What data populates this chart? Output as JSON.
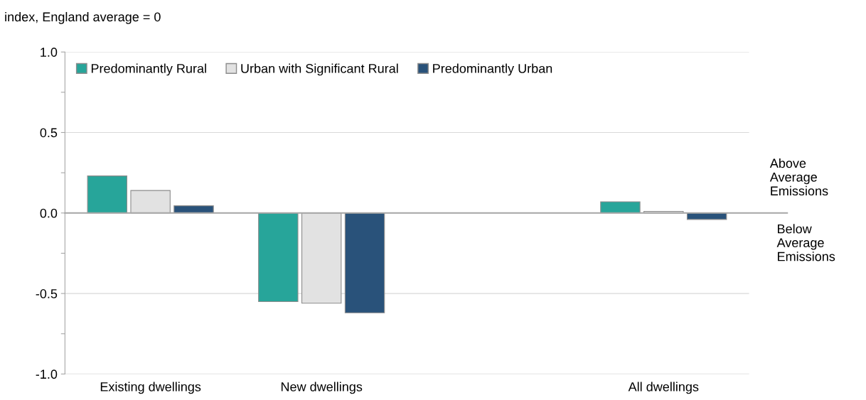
{
  "chart_data": {
    "type": "bar",
    "ylabel": "index, England average = 0",
    "categories": [
      "Existing dwellings",
      "New dwellings",
      null,
      "All dwellings"
    ],
    "series": [
      {
        "name": "Predominantly Rural",
        "color": "#27a59a",
        "values": [
          0.23,
          -0.55,
          null,
          0.07
        ]
      },
      {
        "name": "Urban with Significant Rural",
        "color": "#e2e2e2",
        "values": [
          0.14,
          -0.56,
          null,
          0.01
        ]
      },
      {
        "name": "Predominantly Urban",
        "color": "#29527a",
        "values": [
          0.045,
          -0.62,
          null,
          -0.04
        ]
      }
    ],
    "ylim": [
      -1.0,
      1.0
    ],
    "yticks": [
      {
        "value": -1.0,
        "label": "-1.0"
      },
      {
        "value": -0.75,
        "label": null
      },
      {
        "value": -0.5,
        "label": "-0.5"
      },
      {
        "value": -0.25,
        "label": null
      },
      {
        "value": 0.0,
        "label": "0.0"
      },
      {
        "value": 0.25,
        "label": null
      },
      {
        "value": 0.5,
        "label": "0.5"
      },
      {
        "value": 0.75,
        "label": null
      },
      {
        "value": 1.0,
        "label": "1.0"
      }
    ],
    "grid": "y",
    "legend": "top left",
    "annotations": [
      "Above\nAverage\nEmissions",
      "Below\nAverage\nEmissions"
    ],
    "ref_lines": [
      {
        "axis": "y",
        "value": 0.0,
        "color": "#a6a6a6"
      }
    ]
  }
}
